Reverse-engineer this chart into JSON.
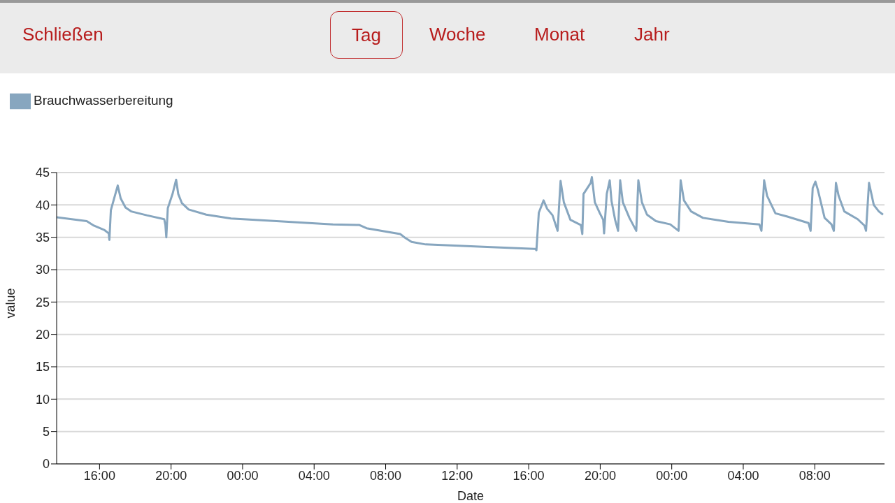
{
  "chart_data": {
    "type": "line",
    "xlabel": "Date",
    "ylabel": "value",
    "annotations": [
      "Schließen",
      "Tag",
      "Woche",
      "Monat",
      "Jahr"
    ],
    "x": [
      "--01-01T13:36",
      "--01-01T15:17",
      "--01-01T15:41",
      "--01-01T16:17",
      "--01-01T16:31",
      "--01-01T16:33",
      "--01-01T16:38",
      "--01-01T17:01",
      "--01-01T17:11",
      "--01-01T17:27",
      "--01-01T17:46",
      "--01-01T18:38",
      "--01-01T19:37",
      "--01-01T19:41",
      "--01-01T19:44",
      "--01-01T19:49",
      "--01-01T20:05",
      "--01-01T20:17",
      "--01-01T20:24",
      "--01-01T20:36",
      "--01-01T20:59",
      "--01-01T21:58",
      "--01-01T23:21",
      "--01-02T01:54",
      "--01-02T05:03",
      "--01-02T06:32",
      "--01-02T06:56",
      "--01-02T08:49",
      "--01-02T09:03",
      "--01-02T09:27",
      "--01-02T10:14",
      "--01-02T13:41",
      "--01-02T16:22",
      "--01-02T16:26",
      "--01-02T16:34",
      "--01-02T16:50",
      "--01-02T17:02",
      "--01-02T17:20",
      "--01-02T17:37",
      "--01-02T17:47",
      "--01-02T17:58",
      "--01-02T18:20",
      "--01-02T18:55",
      "--01-02T19:00",
      "--01-02T19:04",
      "--01-02T19:28",
      "--01-02T19:32",
      "--01-02T19:42",
      "--01-02T19:59",
      "--01-02T20:10",
      "--01-02T20:13",
      "--01-02T20:22",
      "--01-02T20:32",
      "--01-02T20:38",
      "--01-02T20:50",
      "--01-02T21:00",
      "--01-02T21:07",
      "--01-02T21:16",
      "--01-02T21:38",
      "--01-02T22:01",
      "--01-02T22:08",
      "--01-02T22:20",
      "--01-02T22:37",
      "--01-02T23:07",
      "--01-02T23:55",
      "--01-03T00:23",
      "--01-03T00:30",
      "--01-03T00:41",
      "--01-03T01:05",
      "--01-03T01:45",
      "--01-03T03:10",
      "--01-03T04:54",
      "--01-03T05:01",
      "--01-03T05:10",
      "--01-03T05:20",
      "--01-03T05:48",
      "--01-03T06:28",
      "--01-03T07:39",
      "--01-03T07:46",
      "--01-03T07:53",
      "--01-03T08:02",
      "--01-03T08:10",
      "--01-03T08:33",
      "--01-03T08:56",
      "--01-03T09:04",
      "--01-03T09:11",
      "--01-03T09:20",
      "--01-03T09:39",
      "--01-03T10:24",
      "--01-03T10:47",
      "--01-03T10:52",
      "--01-03T11:02",
      "--01-03T11:18",
      "--01-03T11:35",
      "--01-03T11:49"
    ],
    "series": [
      {
        "name": "Brauchwasserbereitung",
        "color": "#87a6bf",
        "values": [
          38.1,
          37.5,
          36.8,
          36.1,
          35.6,
          34.6,
          39.2,
          43.0,
          41.0,
          39.6,
          39.0,
          38.4,
          37.8,
          36.9,
          35.0,
          39.5,
          41.7,
          43.9,
          41.7,
          40.3,
          39.3,
          38.5,
          37.9,
          37.5,
          37.0,
          36.9,
          36.4,
          35.5,
          35.0,
          34.3,
          33.9,
          33.5,
          33.2,
          33.0,
          38.8,
          40.7,
          39.4,
          38.4,
          36.0,
          43.7,
          40.4,
          37.7,
          36.9,
          35.5,
          41.7,
          43.4,
          44.3,
          40.4,
          38.7,
          37.7,
          35.6,
          41.7,
          43.8,
          40.6,
          37.7,
          36.0,
          43.8,
          40.4,
          38.0,
          36.0,
          43.8,
          40.4,
          38.5,
          37.5,
          37.0,
          36.0,
          43.8,
          40.7,
          39.0,
          38.0,
          37.4,
          37.0,
          36.0,
          43.8,
          41.4,
          38.7,
          38.2,
          37.2,
          36.0,
          42.6,
          43.6,
          42.4,
          38.0,
          37.0,
          36.0,
          43.4,
          41.4,
          39.0,
          37.8,
          36.8,
          36.0,
          43.4,
          40.0,
          39.0,
          38.5
        ]
      }
    ],
    "xlim": [
      "--01-01T13:36",
      "--01-03T11:54"
    ],
    "xticks": [
      {
        "value": "--01-01T16:00",
        "label": "16:00"
      },
      {
        "value": "--01-01T20:00",
        "label": "20:00"
      },
      {
        "value": "--01-02T00:00",
        "label": "00:00"
      },
      {
        "value": "--01-02T04:00",
        "label": "04:00"
      },
      {
        "value": "--01-02T08:00",
        "label": "08:00"
      },
      {
        "value": "--01-02T12:00",
        "label": "12:00"
      },
      {
        "value": "--01-02T16:00",
        "label": "16:00"
      },
      {
        "value": "--01-02T20:00",
        "label": "20:00"
      },
      {
        "value": "--01-03T00:00",
        "label": "00:00"
      },
      {
        "value": "--01-03T04:00",
        "label": "04:00"
      },
      {
        "value": "--01-03T08:00",
        "label": "08:00"
      }
    ],
    "ylim": [
      0,
      45
    ],
    "yticks": [
      0,
      5,
      10,
      15,
      20,
      25,
      30,
      35,
      40,
      45
    ],
    "grid": "y",
    "legend": "top left",
    "marker": "none",
    "line_style": "solid"
  }
}
